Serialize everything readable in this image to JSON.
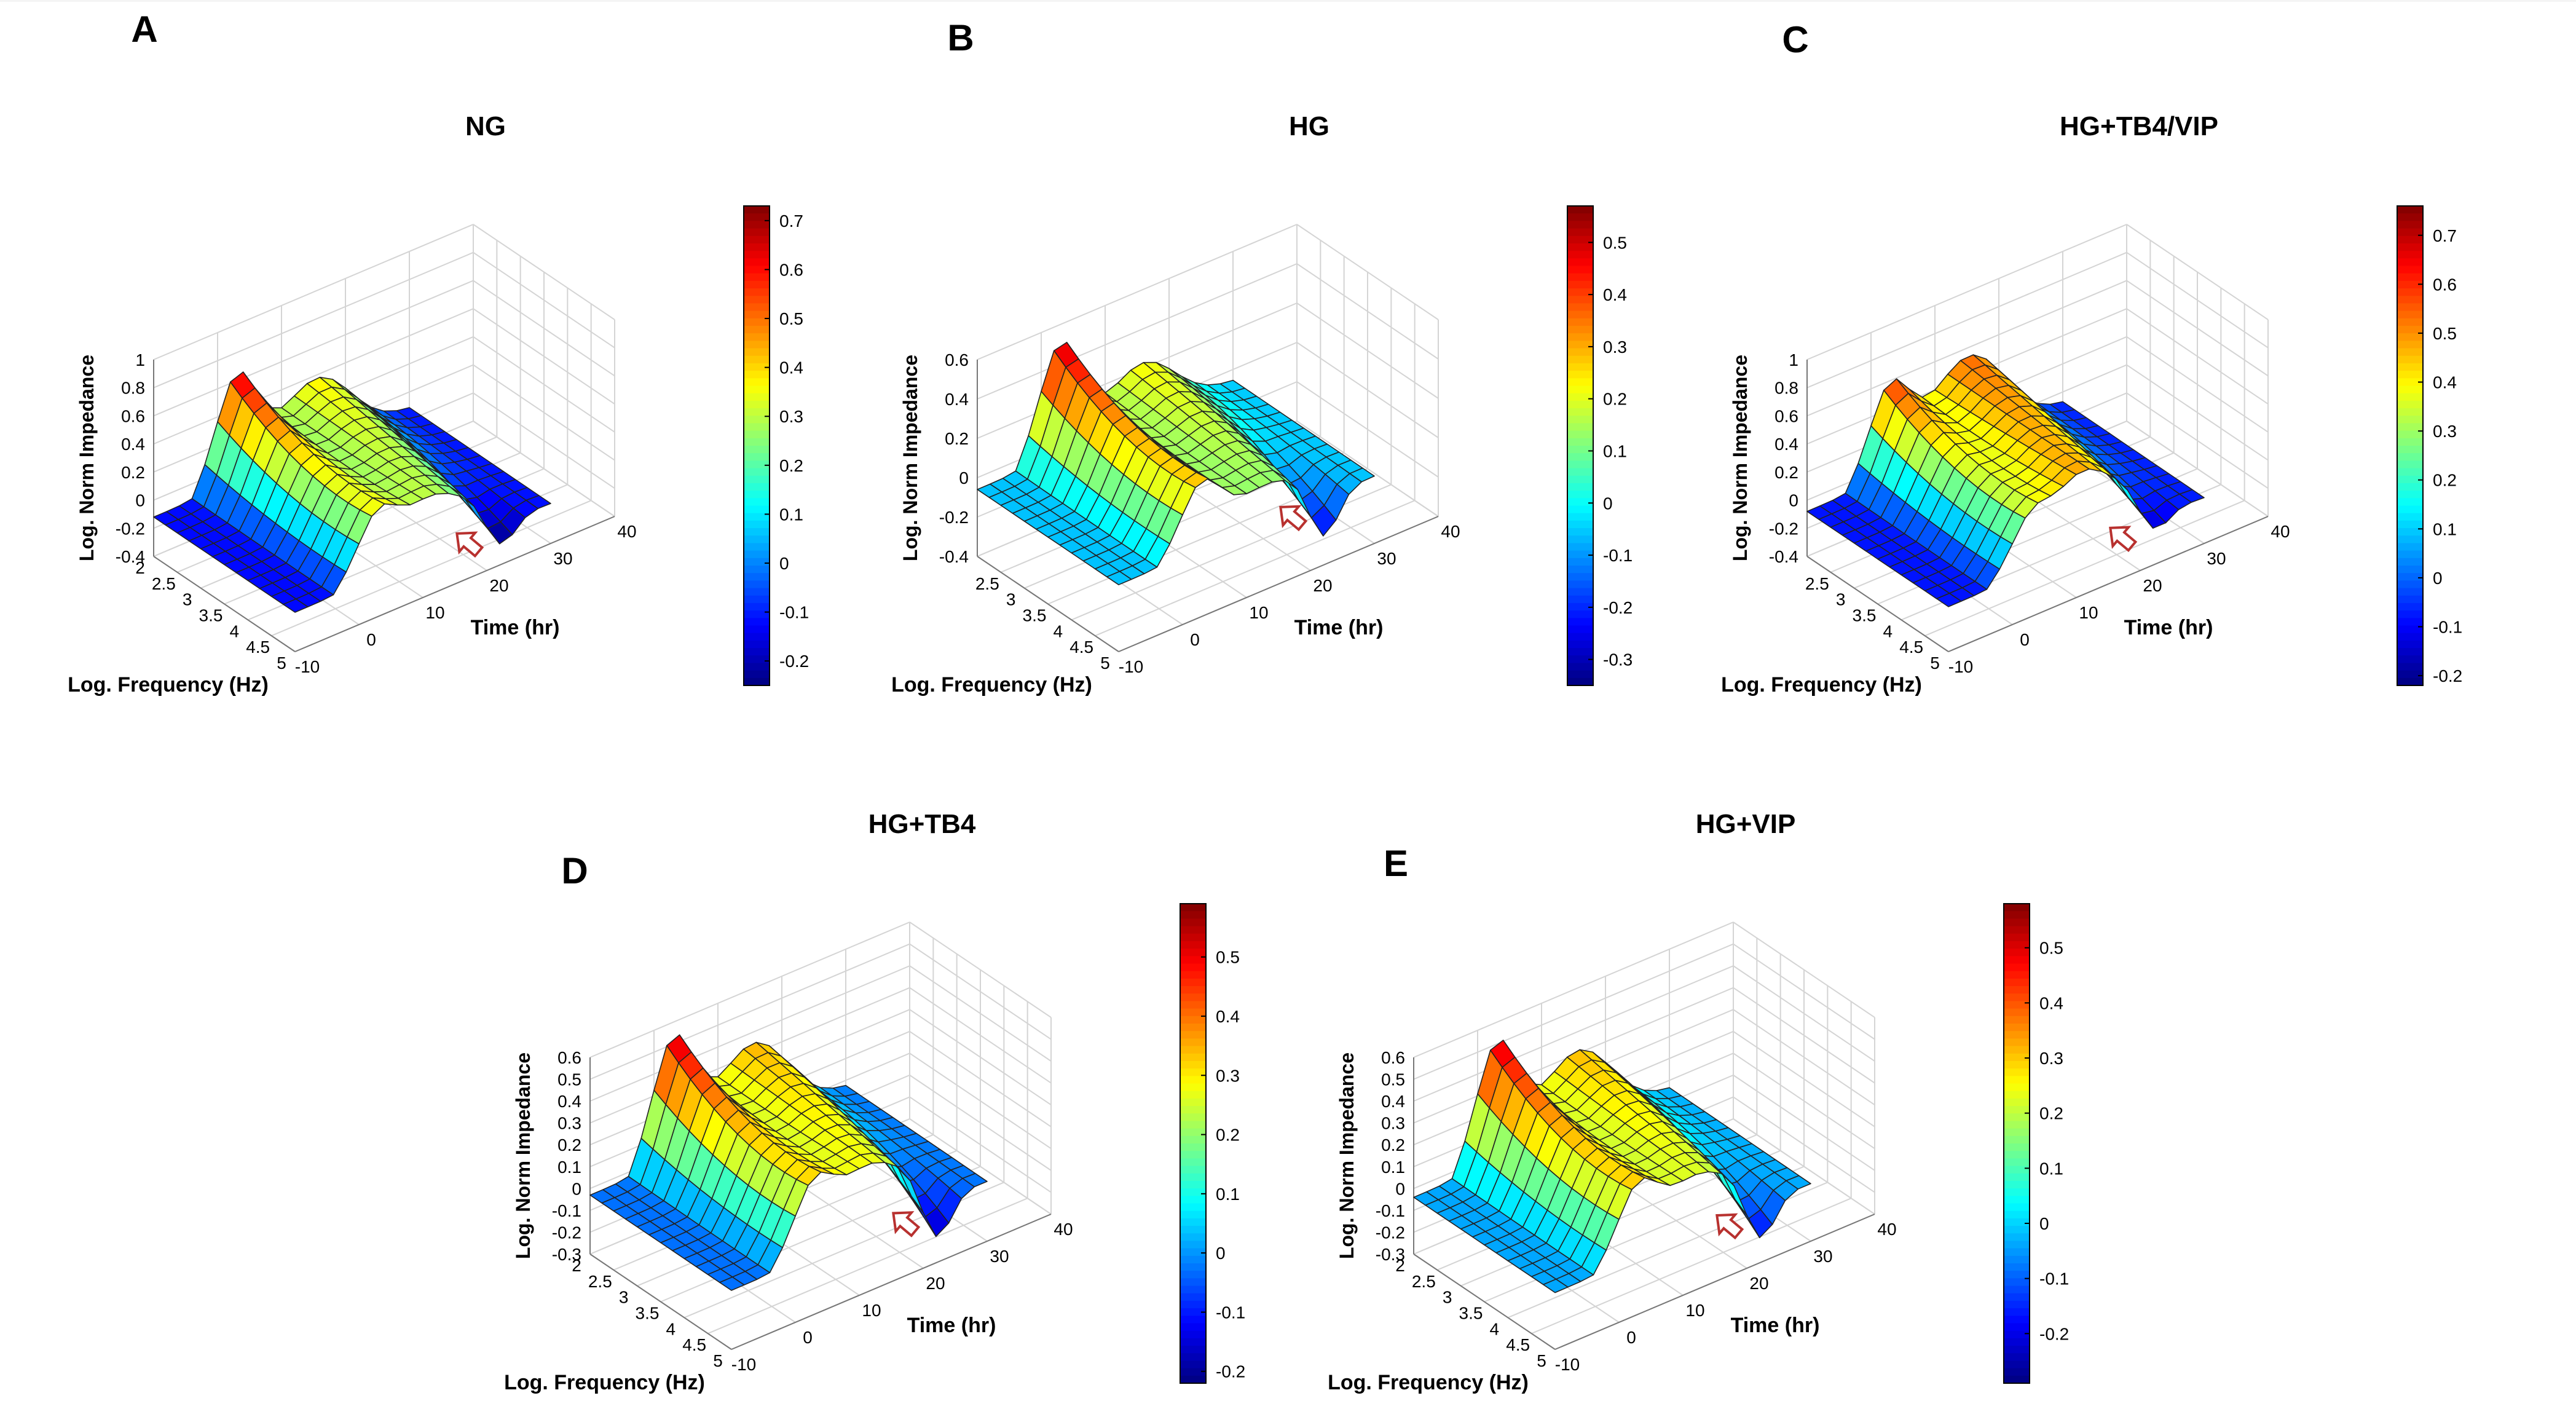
{
  "figure": {
    "type": "3d-surface-panels"
  },
  "chart_data": [
    {
      "panel": "A",
      "type": "surface",
      "title": "NG",
      "xlabel": "Log. Frequency (Hz)",
      "ylabel": "Time (hr)",
      "zlabel": "Log. Norm Impedance",
      "x_ticks": [
        "2",
        "2.5",
        "3",
        "3.5",
        "4",
        "4.5",
        "5"
      ],
      "y_ticks": [
        "-10",
        "0",
        "10",
        "20",
        "30",
        "40"
      ],
      "z_ticks": [
        "-0.4",
        "-0.2",
        "0",
        "0.2",
        "0.4",
        "0.6",
        "0.8",
        "1"
      ],
      "xlim": [
        2,
        5
      ],
      "ylim": [
        -10,
        40
      ],
      "zlim": [
        -0.4,
        1
      ],
      "colorbar": {
        "min": -0.25,
        "max": 0.73,
        "ticks": [
          "-0.2",
          "-0.1",
          "0",
          "0.1",
          "0.2",
          "0.3",
          "0.4",
          "0.5",
          "0.6",
          "0.7"
        ]
      },
      "peaks": {
        "p1": 0.63,
        "p2": 0.35,
        "base": -0.12,
        "dip": -0.38,
        "mid": 0.13
      },
      "arrow": {
        "x": 4.7,
        "y": 19
      }
    },
    {
      "panel": "B",
      "type": "surface",
      "title": "HG",
      "xlabel": "Log. Frequency (Hz)",
      "ylabel": "Time (hr)",
      "zlabel": "Log. Norm Impedance",
      "x_ticks": [
        "2.5",
        "3",
        "3.5",
        "4",
        "4.5",
        "5"
      ],
      "y_ticks": [
        "-10",
        "0",
        "10",
        "20",
        "30",
        "40"
      ],
      "z_ticks": [
        "-0.4",
        "-0.2",
        "0",
        "0.2",
        "0.4",
        "0.6"
      ],
      "xlim": [
        2,
        5
      ],
      "ylim": [
        -10,
        40
      ],
      "zlim": [
        -0.4,
        0.6
      ],
      "colorbar": {
        "min": -0.35,
        "max": 0.57,
        "ticks": [
          "-0.3",
          "-0.2",
          "-0.1",
          "0",
          "0.1",
          "0.2",
          "0.3",
          "0.4",
          "0.5"
        ]
      },
      "peaks": {
        "p1": 0.5,
        "p2": 0.22,
        "base": -0.06,
        "dip": -0.33,
        "mid": 0.02
      },
      "arrow": {
        "x": 4.7,
        "y": 19
      }
    },
    {
      "panel": "C",
      "type": "surface",
      "title": "HG+TB4/VIP",
      "xlabel": "Log. Frequency (Hz)",
      "ylabel": "Time (hr)",
      "zlabel": "Log. Norm Impedance",
      "x_ticks": [
        "2.5",
        "3",
        "3.5",
        "4",
        "4.5",
        "5"
      ],
      "y_ticks": [
        "-10",
        "0",
        "10",
        "20",
        "30",
        "40"
      ],
      "z_ticks": [
        "-0.4",
        "-0.2",
        "0",
        "0.2",
        "0.4",
        "0.6",
        "0.8",
        "1"
      ],
      "xlim": [
        2,
        5
      ],
      "ylim": [
        -10,
        40
      ],
      "zlim": [
        -0.4,
        1
      ],
      "colorbar": {
        "min": -0.22,
        "max": 0.76,
        "ticks": [
          "-0.2",
          "-0.1",
          "0",
          "0.1",
          "0.2",
          "0.3",
          "0.4",
          "0.5",
          "0.6",
          "0.7"
        ]
      },
      "peaks": {
        "p1": 0.56,
        "p2": 0.5,
        "base": -0.08,
        "dip": -0.3,
        "mid": 0.28
      },
      "arrow": {
        "x": 4.7,
        "y": 19
      }
    },
    {
      "panel": "D",
      "type": "surface",
      "title": "HG+TB4",
      "xlabel": "Log. Frequency (Hz)",
      "ylabel": "Time (hr)",
      "zlabel": "Log. Norm Impedance",
      "x_ticks": [
        "2",
        "2.5",
        "3",
        "3.5",
        "4",
        "4.5",
        "5"
      ],
      "y_ticks": [
        "-10",
        "0",
        "10",
        "20",
        "30",
        "40"
      ],
      "z_ticks": [
        "-0.3",
        "-0.2",
        "-0.1",
        "0",
        "0.1",
        "0.2",
        "0.3",
        "0.4",
        "0.5",
        "0.6"
      ],
      "xlim": [
        2,
        5
      ],
      "ylim": [
        -10,
        40
      ],
      "zlim": [
        -0.3,
        0.6
      ],
      "colorbar": {
        "min": -0.22,
        "max": 0.59,
        "ticks": [
          "-0.2",
          "-0.1",
          "0",
          "0.1",
          "0.2",
          "0.3",
          "0.4",
          "0.5"
        ]
      },
      "peaks": {
        "p1": 0.52,
        "p2": 0.33,
        "base": -0.03,
        "dip": -0.28,
        "mid": 0.15
      },
      "arrow": {
        "x": 4.7,
        "y": 19
      }
    },
    {
      "panel": "E",
      "type": "surface",
      "title": "HG+VIP",
      "xlabel": "Log. Frequency (Hz)",
      "ylabel": "Time (hr)",
      "zlabel": "Log. Norm Impedance",
      "x_ticks": [
        "2",
        "2.5",
        "3",
        "3.5",
        "4",
        "4.5",
        "5"
      ],
      "y_ticks": [
        "-10",
        "0",
        "10",
        "20",
        "30",
        "40"
      ],
      "z_ticks": [
        "-0.3",
        "-0.2",
        "-0.1",
        "0",
        "0.1",
        "0.2",
        "0.3",
        "0.4",
        "0.5",
        "0.6"
      ],
      "xlim": [
        2,
        5
      ],
      "ylim": [
        -10,
        40
      ],
      "zlim": [
        -0.3,
        0.6
      ],
      "colorbar": {
        "min": -0.29,
        "max": 0.58,
        "ticks": [
          "-0.2",
          "-0.1",
          "0",
          "0.1",
          "0.2",
          "0.3",
          "0.4",
          "0.5"
        ]
      },
      "peaks": {
        "p1": 0.5,
        "p2": 0.3,
        "base": -0.04,
        "dip": -0.28,
        "mid": 0.1
      },
      "arrow": {
        "x": 4.7,
        "y": 19
      }
    }
  ]
}
